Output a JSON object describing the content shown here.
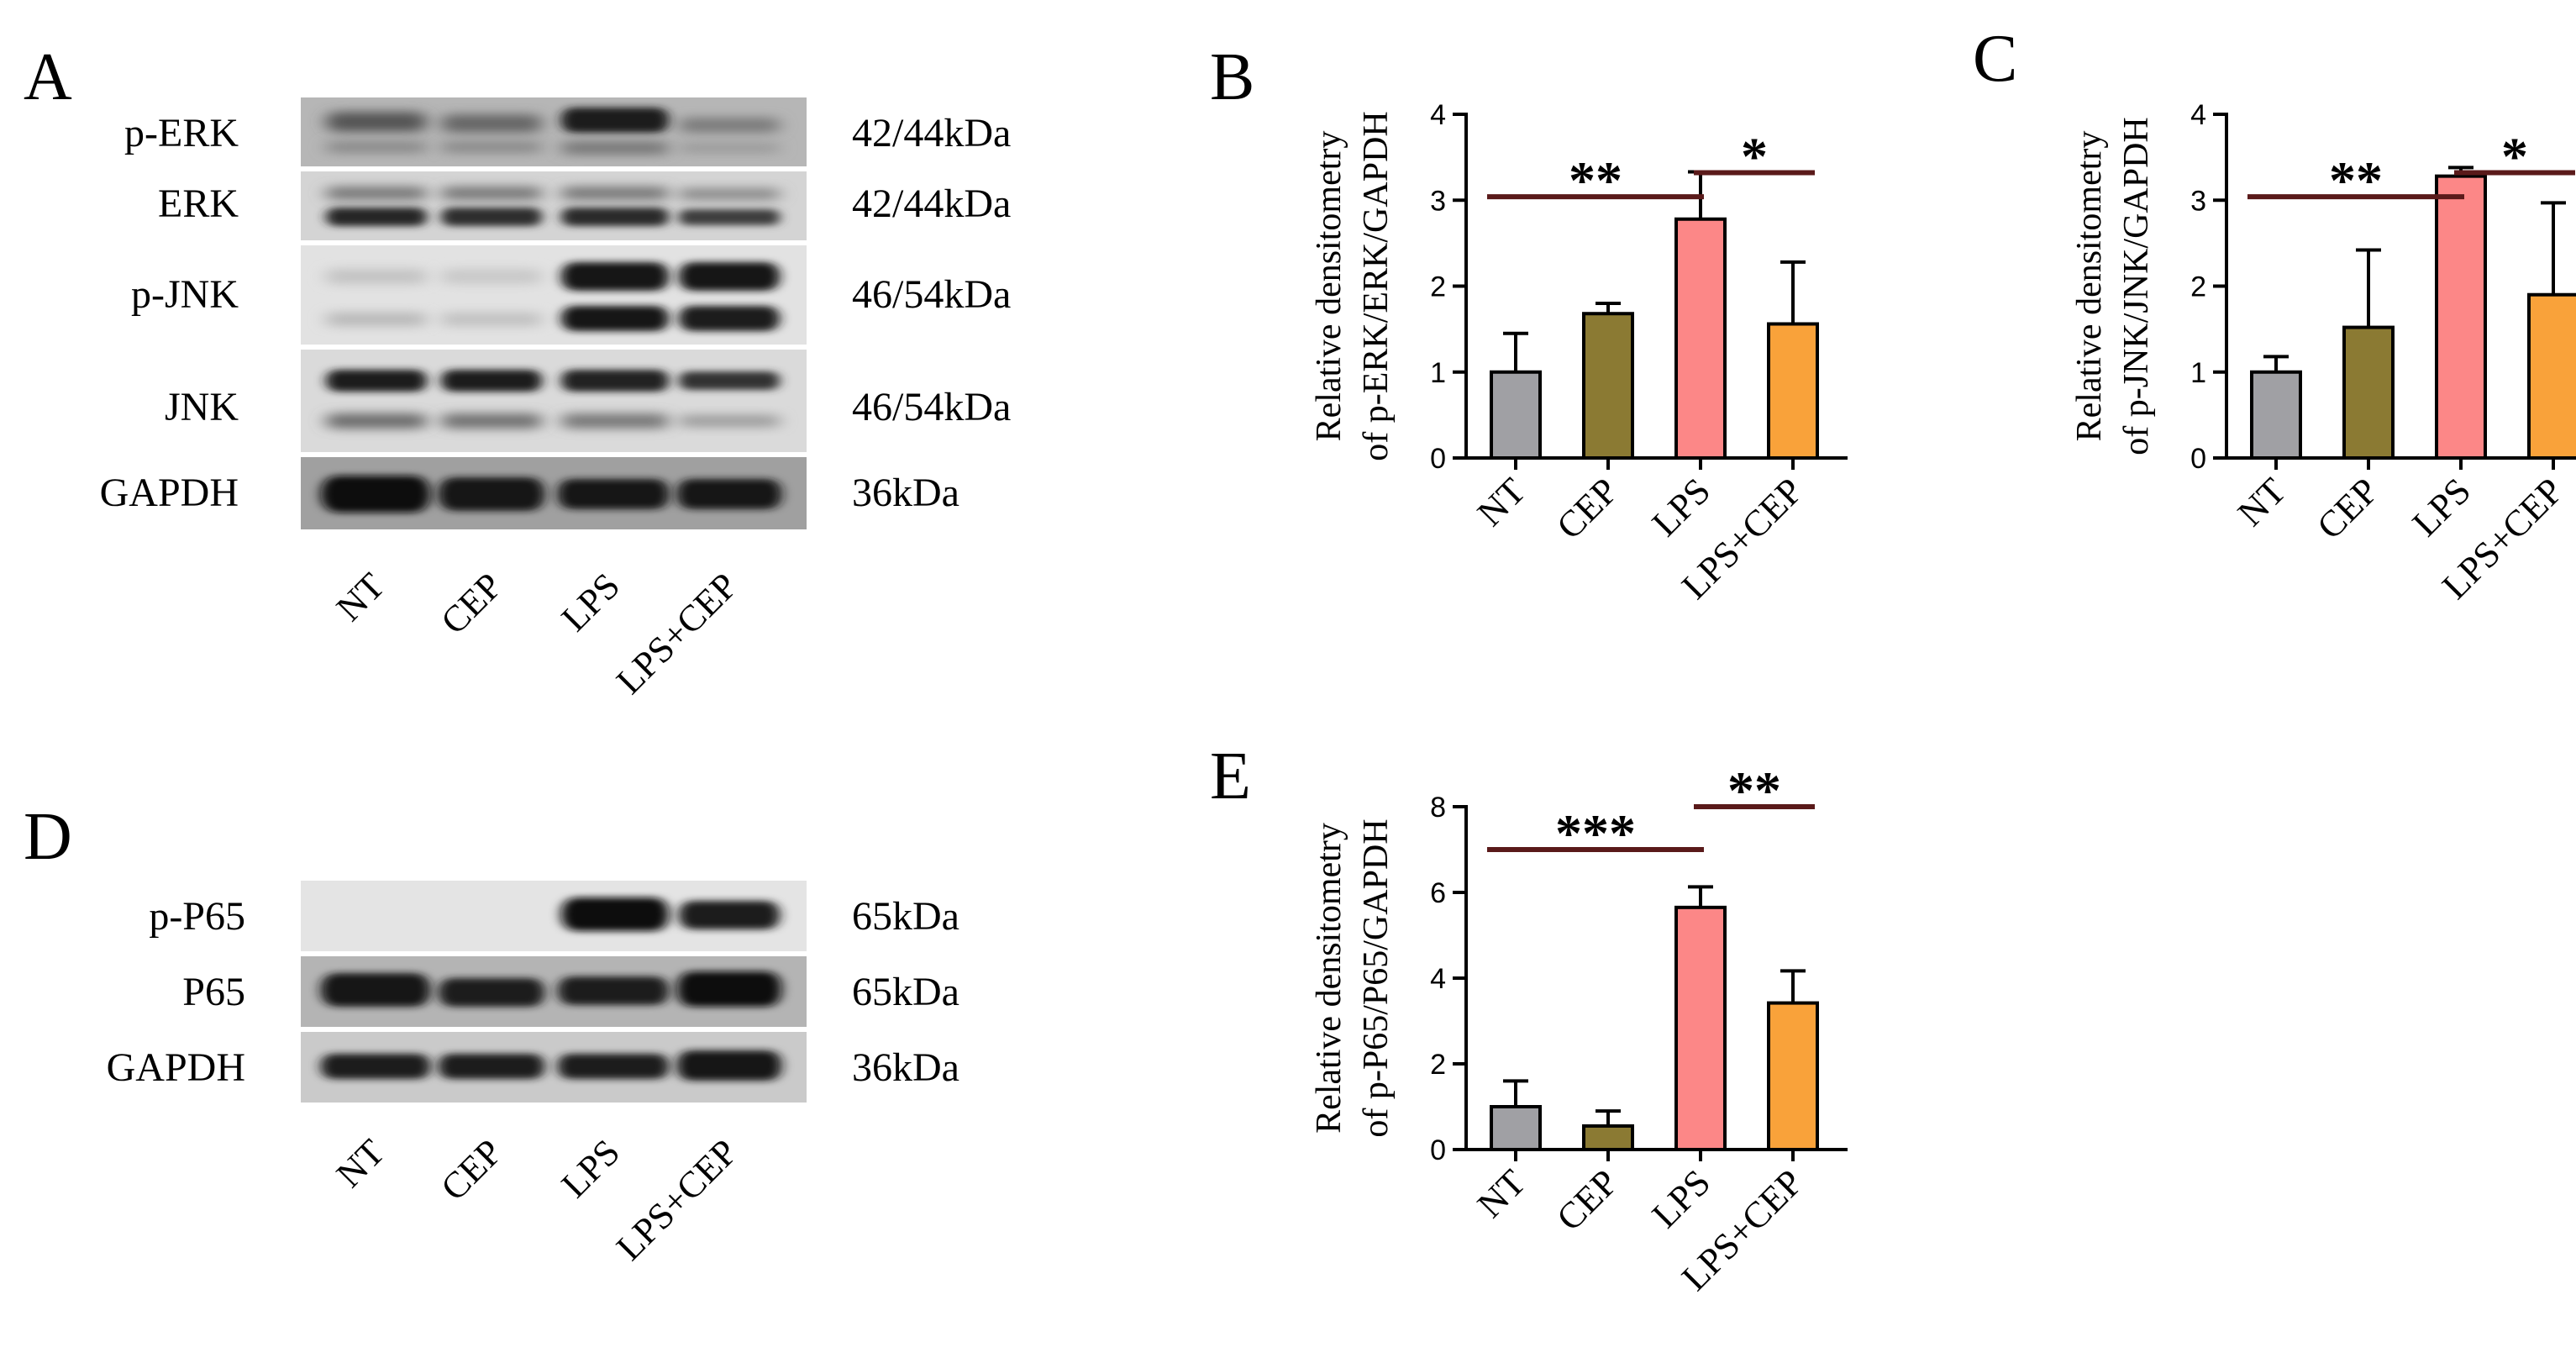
{
  "panels": {
    "A": "A",
    "B": "B",
    "C": "C",
    "D": "D",
    "E": "E"
  },
  "lanes": [
    "NT",
    "CEP",
    "LPS",
    "LPS+CEP"
  ],
  "blotA": {
    "rows": [
      {
        "name": "p-ERK",
        "kda": "42/44kDa"
      },
      {
        "name": "ERK",
        "kda": "42/44kDa"
      },
      {
        "name": "p-JNK",
        "kda": "46/54kDa"
      },
      {
        "name": "JNK",
        "kda": "46/54kDa"
      },
      {
        "name": "GAPDH",
        "kda": "36kDa"
      }
    ]
  },
  "blotD": {
    "rows": [
      {
        "name": "p-P65",
        "kda": "65kDa"
      },
      {
        "name": "P65",
        "kda": "65kDa"
      },
      {
        "name": "GAPDH",
        "kda": "36kDa"
      }
    ]
  },
  "colors": {
    "NT": "#a0a0a4",
    "CEP": "#8b7a33",
    "LPS": "#fc8787",
    "LPS+CEP": "#f9a23a",
    "sig_line": "#5a1a1a"
  },
  "chart_data": [
    {
      "panel": "B",
      "type": "bar",
      "categories": [
        "NT",
        "CEP",
        "LPS",
        "LPS+CEP"
      ],
      "values": [
        1.0,
        1.68,
        2.78,
        1.56
      ],
      "errors": [
        0.45,
        0.12,
        0.55,
        0.72
      ],
      "ylabel_lines": [
        "Relative densitometry",
        "of p-ERK/ERK/GAPDH"
      ],
      "ylim": [
        0,
        4
      ],
      "yticks": [
        0,
        1,
        2,
        3,
        4
      ],
      "significance": [
        {
          "from": "NT",
          "to": "LPS",
          "label": "**"
        },
        {
          "from": "LPS",
          "to": "LPS+CEP",
          "label": "*"
        }
      ]
    },
    {
      "panel": "C",
      "type": "bar",
      "categories": [
        "NT",
        "CEP",
        "LPS",
        "LPS+CEP"
      ],
      "values": [
        1.0,
        1.52,
        3.28,
        1.9
      ],
      "errors": [
        0.18,
        0.9,
        0.1,
        1.07
      ],
      "ylabel_lines": [
        "Relative densitometry",
        "of p-JNK/JNK/GAPDH"
      ],
      "ylim": [
        0,
        4
      ],
      "yticks": [
        0,
        1,
        2,
        3,
        4
      ],
      "significance": [
        {
          "from": "NT",
          "to": "LPS",
          "label": "**"
        },
        {
          "from": "LPS",
          "to": "LPS+CEP",
          "label": "*"
        }
      ]
    },
    {
      "panel": "E",
      "type": "bar",
      "categories": [
        "NT",
        "CEP",
        "LPS",
        "LPS+CEP"
      ],
      "values": [
        1.0,
        0.55,
        5.65,
        3.42
      ],
      "errors": [
        0.6,
        0.35,
        0.48,
        0.75
      ],
      "ylabel_lines": [
        "Relative densitometry",
        "of p-P65/P65/GAPDH"
      ],
      "ylim": [
        0,
        8
      ],
      "yticks": [
        0,
        2,
        4,
        6,
        8
      ],
      "significance": [
        {
          "from": "NT",
          "to": "LPS",
          "label": "***"
        },
        {
          "from": "LPS",
          "to": "LPS+CEP",
          "label": "**"
        }
      ]
    }
  ]
}
